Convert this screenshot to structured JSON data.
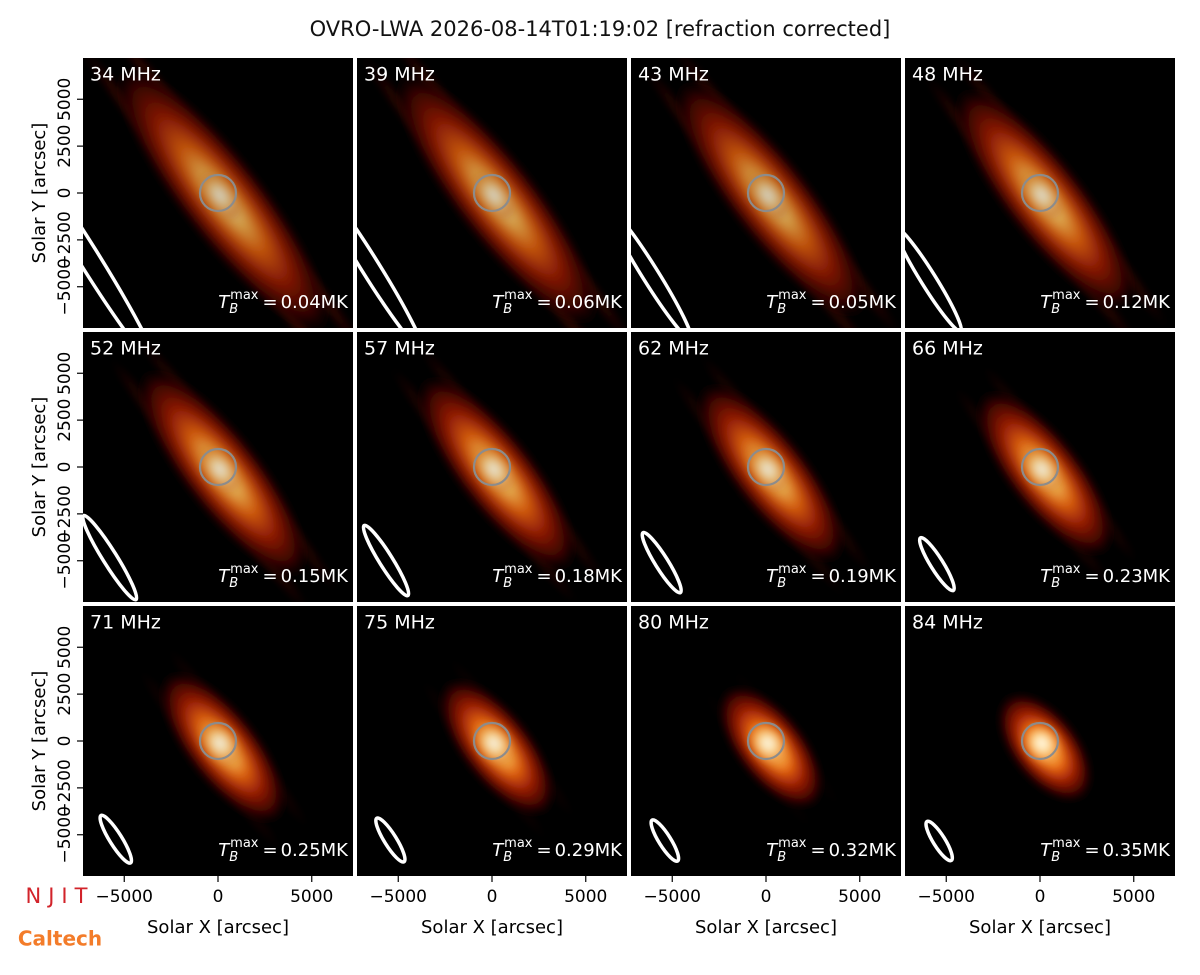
{
  "chart_data": {
    "type": "image-grid",
    "title": "OVRO-LWA 2026-08-14T01:19:02 [refraction corrected]",
    "xlabel": "Solar X [arcsec]",
    "ylabel": "Solar Y [arcsec]",
    "xlim": [
      -7200,
      7200
    ],
    "ylim": [
      -7200,
      7200
    ],
    "xticks": [
      {
        "value": -5000,
        "label": "−5000"
      },
      0,
      5000
    ],
    "yticks": [
      {
        "value": -5000,
        "label": "−5000"
      },
      {
        "value": -2500,
        "label": "−2500"
      },
      0,
      2500,
      5000
    ],
    "categories": [
      "34 MHz",
      "39 MHz",
      "43 MHz",
      "48 MHz",
      "52 MHz",
      "57 MHz",
      "62 MHz",
      "66 MHz",
      "71 MHz",
      "75 MHz",
      "80 MHz",
      "84 MHz"
    ],
    "values": [
      0.04,
      0.06,
      0.05,
      0.12,
      0.15,
      0.18,
      0.19,
      0.23,
      0.25,
      0.29,
      0.32,
      0.35
    ],
    "value_labels": [
      "0.04MK",
      "0.06MK",
      "0.05MK",
      "0.12MK",
      "0.15MK",
      "0.18MK",
      "0.19MK",
      "0.23MK",
      "0.25MK",
      "0.29MK",
      "0.32MK",
      "0.35MK"
    ],
    "value_label_prefix": {
      "symbol": "T",
      "subscript": "B",
      "superscript": "max",
      "relation": "="
    },
    "logos": [
      "NJIT",
      "Caltech"
    ]
  }
}
